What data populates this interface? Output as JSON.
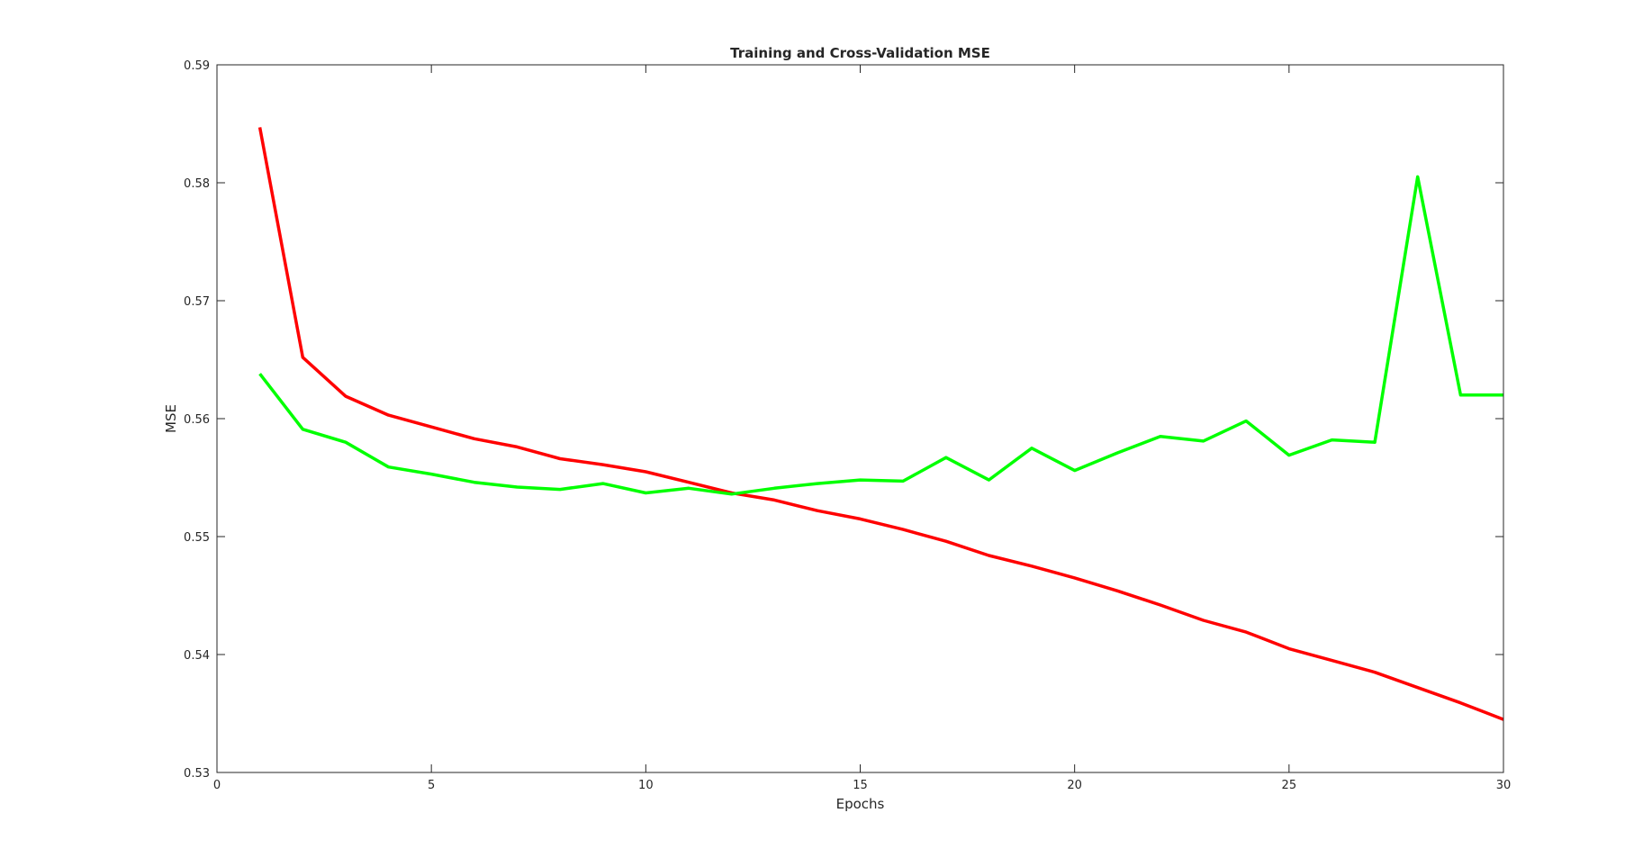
{
  "chart_data": {
    "type": "line",
    "title": "Training and Cross-Validation MSE",
    "xlabel": "Epochs",
    "ylabel": "MSE",
    "xlim": [
      0,
      30
    ],
    "ylim": [
      0.53,
      0.59
    ],
    "xticks": [
      0,
      5,
      10,
      15,
      20,
      25,
      30
    ],
    "yticks": [
      0.53,
      0.54,
      0.55,
      0.56,
      0.57,
      0.58,
      0.59
    ],
    "xtick_labels": [
      "0",
      "5",
      "10",
      "15",
      "20",
      "25",
      "30"
    ],
    "ytick_labels": [
      "0.53",
      "0.54",
      "0.55",
      "0.56",
      "0.57",
      "0.58",
      "0.59"
    ],
    "grid": false,
    "legend": false,
    "x": [
      1,
      2,
      3,
      4,
      5,
      6,
      7,
      8,
      9,
      10,
      11,
      12,
      13,
      14,
      15,
      16,
      17,
      18,
      19,
      20,
      21,
      22,
      23,
      24,
      25,
      26,
      27,
      28,
      29,
      30
    ],
    "series": [
      {
        "color": "#ff0000",
        "values": [
          0.5847,
          0.5652,
          0.5619,
          0.5603,
          0.5593,
          0.5583,
          0.5576,
          0.5566,
          0.5561,
          0.5555,
          0.5546,
          0.5537,
          0.5531,
          0.5522,
          0.5515,
          0.5506,
          0.5496,
          0.5484,
          0.5475,
          0.5465,
          0.5454,
          0.5442,
          0.5429,
          0.5419,
          0.5405,
          0.5395,
          0.5385,
          0.5372,
          0.5359,
          0.5345
        ]
      },
      {
        "color": "#00ff00",
        "values": [
          0.5638,
          0.5591,
          0.558,
          0.5559,
          0.5553,
          0.5546,
          0.5542,
          0.554,
          0.5545,
          0.5537,
          0.5541,
          0.5536,
          0.5541,
          0.5545,
          0.5548,
          0.5547,
          0.5567,
          0.5548,
          0.5575,
          0.5556,
          0.5571,
          0.5585,
          0.5581,
          0.5598,
          0.5569,
          0.5582,
          0.558,
          0.5805,
          0.562,
          0.562
        ]
      }
    ]
  }
}
